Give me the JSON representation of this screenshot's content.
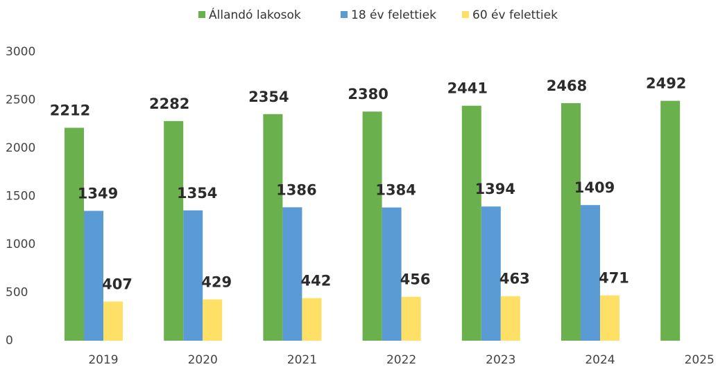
{
  "chart_data": {
    "type": "bar",
    "categories": [
      "2019",
      "2020",
      "2021",
      "2022",
      "2023",
      "2024",
      "2025"
    ],
    "series": [
      {
        "name": "Állandó lakosok",
        "color": "#6ab04c",
        "values": [
          2212,
          2282,
          2354,
          2380,
          2441,
          2468,
          2492
        ]
      },
      {
        "name": "18 év felettiek",
        "color": "#5b9bd5",
        "values": [
          1349,
          1354,
          1386,
          1384,
          1394,
          1409,
          null
        ]
      },
      {
        "name": "60 év felettiek",
        "color": "#ffe066",
        "values": [
          407,
          429,
          442,
          456,
          463,
          471,
          null
        ]
      }
    ],
    "ylim": [
      0,
      3000
    ],
    "yticks": [
      0,
      500,
      1000,
      1500,
      2000,
      2500,
      3000
    ],
    "grid": false,
    "legend": "top"
  }
}
